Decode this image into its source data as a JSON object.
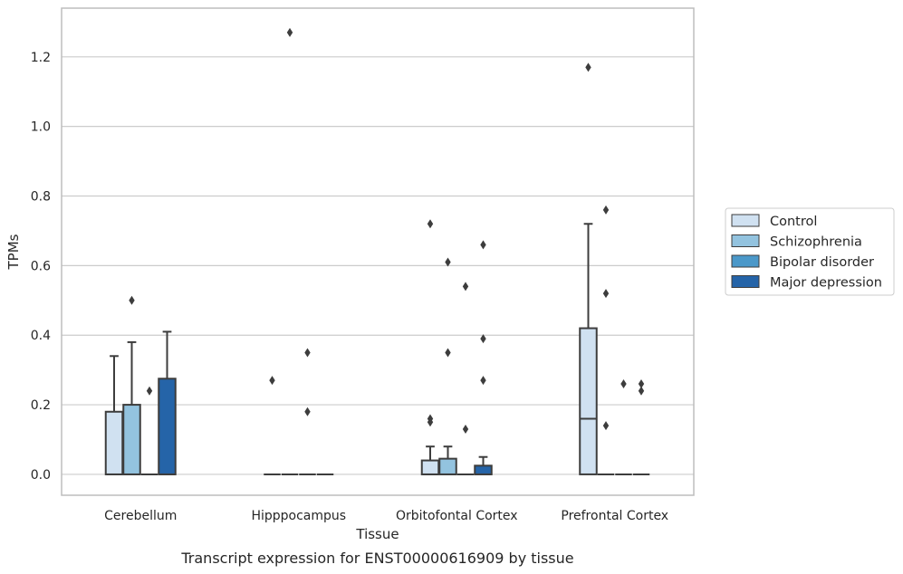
{
  "caption": "Transcript expression for ENST00000616909 by tissue",
  "colors": {
    "Control": "#d0e1f1",
    "Schizophrenia": "#93c3df",
    "Bipolar disorder": "#4b98c9",
    "Major depression": "#2564a8",
    "outline": "#3d3d3d",
    "grid": "#cccccc",
    "frame": "#bdbdbd"
  },
  "chart_data": {
    "type": "box",
    "xlabel": "Tissue",
    "ylabel": "TPMs",
    "ylim": [
      -0.06,
      1.34
    ],
    "yticks": [
      "0.0",
      "0.2",
      "0.4",
      "0.6",
      "0.8",
      "1.0",
      "1.2"
    ],
    "grid": "horizontal",
    "legend_position": "right",
    "categories": [
      "Cerebellum",
      "Hipppocampus",
      "Orbitofontal Cortex",
      "Prefrontal Cortex"
    ],
    "series": [
      {
        "name": "Control",
        "boxes": [
          {
            "q1": 0.0,
            "median": 0.0,
            "q3": 0.18,
            "whisker_low": 0.0,
            "whisker_high": 0.34,
            "outliers": []
          },
          {
            "q1": 0.0,
            "median": 0.0,
            "q3": 0.0,
            "whisker_low": 0.0,
            "whisker_high": 0.0,
            "outliers": [
              0.27
            ]
          },
          {
            "q1": 0.0,
            "median": 0.0,
            "q3": 0.04,
            "whisker_low": 0.0,
            "whisker_high": 0.08,
            "outliers": [
              0.72,
              0.16,
              0.15
            ]
          },
          {
            "q1": 0.0,
            "median": 0.16,
            "q3": 0.42,
            "whisker_low": 0.0,
            "whisker_high": 0.72,
            "outliers": [
              1.17
            ]
          }
        ]
      },
      {
        "name": "Schizophrenia",
        "boxes": [
          {
            "q1": 0.0,
            "median": 0.0,
            "q3": 0.2,
            "whisker_low": 0.0,
            "whisker_high": 0.38,
            "outliers": [
              0.5
            ]
          },
          {
            "q1": 0.0,
            "median": 0.0,
            "q3": 0.0,
            "whisker_low": 0.0,
            "whisker_high": 0.0,
            "outliers": [
              1.27
            ]
          },
          {
            "q1": 0.0,
            "median": 0.0,
            "q3": 0.045,
            "whisker_low": 0.0,
            "whisker_high": 0.08,
            "outliers": [
              0.61,
              0.35
            ]
          },
          {
            "q1": 0.0,
            "median": 0.0,
            "q3": 0.0,
            "whisker_low": 0.0,
            "whisker_high": 0.0,
            "outliers": [
              0.76,
              0.52,
              0.14
            ]
          }
        ]
      },
      {
        "name": "Bipolar disorder",
        "boxes": [
          {
            "q1": 0.0,
            "median": 0.0,
            "q3": 0.0,
            "whisker_low": 0.0,
            "whisker_high": 0.0,
            "outliers": [
              0.24
            ]
          },
          {
            "q1": 0.0,
            "median": 0.0,
            "q3": 0.0,
            "whisker_low": 0.0,
            "whisker_high": 0.0,
            "outliers": [
              0.35,
              0.18
            ]
          },
          {
            "q1": 0.0,
            "median": 0.0,
            "q3": 0.0,
            "whisker_low": 0.0,
            "whisker_high": 0.0,
            "outliers": [
              0.54,
              0.13
            ]
          },
          {
            "q1": 0.0,
            "median": 0.0,
            "q3": 0.0,
            "whisker_low": 0.0,
            "whisker_high": 0.0,
            "outliers": [
              0.26
            ]
          }
        ]
      },
      {
        "name": "Major depression",
        "boxes": [
          {
            "q1": 0.0,
            "median": 0.0,
            "q3": 0.275,
            "whisker_low": 0.0,
            "whisker_high": 0.41,
            "outliers": []
          },
          {
            "q1": 0.0,
            "median": 0.0,
            "q3": 0.0,
            "whisker_low": 0.0,
            "whisker_high": 0.0,
            "outliers": []
          },
          {
            "q1": 0.0,
            "median": 0.0,
            "q3": 0.025,
            "whisker_low": 0.0,
            "whisker_high": 0.05,
            "outliers": [
              0.66,
              0.39,
              0.27
            ]
          },
          {
            "q1": 0.0,
            "median": 0.0,
            "q3": 0.0,
            "whisker_low": 0.0,
            "whisker_high": 0.0,
            "outliers": [
              0.26,
              0.24
            ]
          }
        ]
      }
    ]
  }
}
